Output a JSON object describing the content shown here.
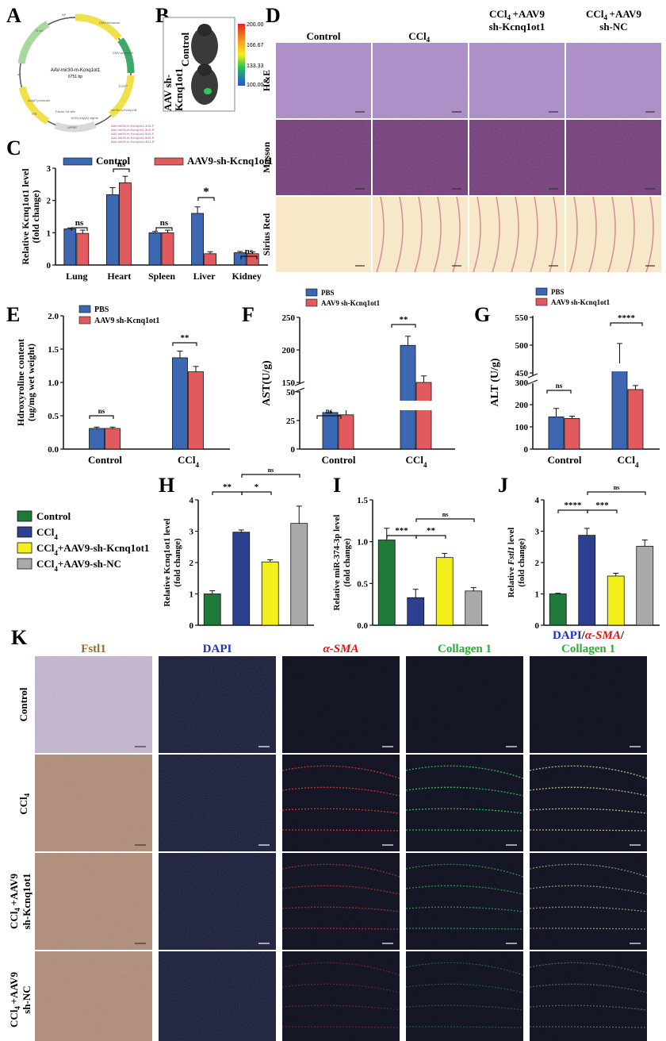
{
  "panels": {
    "A": {
      "letter": "A",
      "plasmid_name": "AAV-mir30-m-Kcnq1ot1",
      "plasmid_size": "6751 bp",
      "features": [
        "AP",
        "CMV enhancer",
        "CMV promoter",
        "EGFP",
        "mir30-m-Kcnq1ot1",
        "hGH poly(A) signal",
        "Factor Xa site",
        "WPRE",
        "ITR",
        "AmpR promoter",
        "ori",
        "f1 ori"
      ],
      "primers": [
        "AAV-mir30-m-Kcnq1ot1-3U5-F",
        "AAV-mir30-m-Kcnq1ot1-3U5-R",
        "AAV-mir30-m-Kcnq1ot1-5U5-F",
        "AAV-mir30-m-Kcnq1ot1-5U5-R",
        "AAV-mir30-m-Kcnq1ot1-3U3-R"
      ]
    },
    "B": {
      "letter": "B",
      "labels": [
        "Control",
        "AAV sh-\nKcnq1ot1"
      ],
      "colorbar_ticks": [
        "200.00",
        "166.67",
        "133.33",
        "100.00"
      ]
    },
    "C": {
      "letter": "C",
      "legend": [
        "Control",
        "AAV9-sh-Kcnq1ot1"
      ],
      "ylabel_line1": "Relative Kcnq1ot1 level",
      "ylabel_line2": "(fold change)",
      "significance": [
        "ns",
        "ns",
        "ns",
        "*",
        "ns"
      ]
    },
    "D": {
      "letter": "D",
      "columns": [
        "Control",
        "CCl4",
        "CCl4+AAV9\nsh-Kcnq1ot1",
        "CCl4+AAV9\nsh-NC"
      ],
      "rows": [
        "H&E",
        "Masson",
        "Sirius Red"
      ]
    },
    "E": {
      "letter": "E",
      "legend": [
        "PBS",
        "AAV9 sh-Kcnq1ot1"
      ],
      "ylabel_line1": "Hdroxyroline content",
      "ylabel_line2": "(ug/mg wet weight)",
      "significance": [
        "ns",
        "**"
      ]
    },
    "F": {
      "letter": "F",
      "legend": [
        "PBS",
        "AAV9 sh-Kcnq1ot1"
      ],
      "ylabel": "AST(U/g)",
      "significance": [
        "ns",
        "**"
      ]
    },
    "G": {
      "letter": "G",
      "legend": [
        "PBS",
        "AAV9 sh-Kcnq1ot1"
      ],
      "ylabel": "ALT (U/g)",
      "significance": [
        "ns",
        "****"
      ]
    },
    "H": {
      "letter": "H",
      "ylabel_line1": "Relative Kcnq1ot1 level",
      "ylabel_line2": "(fold change)",
      "significance": [
        "**",
        "*",
        "ns"
      ]
    },
    "I": {
      "letter": "I",
      "ylabel_line1": "Relative miR-374-3p level",
      "ylabel_line2": "(fold change)",
      "significance": [
        "***",
        "**",
        "ns"
      ]
    },
    "J": {
      "letter": "J",
      "ylabel_line1": "Relative Fstl1 level",
      "ylabel_line2": "(fold change)",
      "significance": [
        "****",
        "***",
        "ns"
      ]
    },
    "K": {
      "letter": "K",
      "columns": [
        "Fstl1",
        "DAPI",
        "α-SMA",
        "Collagen 1"
      ],
      "merge_label": [
        "DAPI",
        "/",
        "α-SMA",
        "/",
        "Collagen 1"
      ],
      "rows": [
        "Control",
        "CCl4",
        "CCl4+AAV9\nsh-Kcnq1ot1",
        "CCl4+AAV9\nsh-NC"
      ]
    },
    "group_legend": [
      "Control",
      "CCl4",
      "CCl4+AAV9-sh-Kcnq1ot1",
      "CCl4+AAV9-sh-NC"
    ]
  },
  "colors": {
    "blue": "#3b67b3",
    "red": "#e05a5e",
    "green": "#1f7a3a",
    "navy": "#2d3f8f",
    "yellow": "#f4ee1a",
    "gray": "#a9a9a9",
    "he": "#a486c0",
    "masson": "#6b3a6e",
    "sirius": "#f6e8c8",
    "ihc": "#b08a63",
    "fluor_bg": "#0b0c14",
    "fstl1_title": "#a0652e",
    "dapi_title": "#2030c0",
    "sma_title": "#e01010",
    "col_title": "#20b030"
  },
  "chart_data": [
    {
      "type": "bar",
      "panel": "C",
      "categories": [
        "Lung",
        "Heart",
        "Spleen",
        "Liver",
        "Kidney"
      ],
      "series": [
        {
          "name": "Control",
          "values": [
            1.12,
            2.18,
            1.0,
            1.6,
            0.38
          ],
          "errors": [
            0.03,
            0.22,
            0.04,
            0.2,
            0.04
          ]
        },
        {
          "name": "AAV9-sh-Kcnq1ot1",
          "values": [
            0.98,
            2.55,
            1.0,
            0.35,
            0.35
          ],
          "errors": [
            0.1,
            0.2,
            0.08,
            0.06,
            0.06
          ]
        }
      ],
      "ylim": [
        0,
        3
      ],
      "yticks": [
        0,
        1,
        2,
        3
      ],
      "ylabel": "Relative Kcnq1ot1 level (fold change)"
    },
    {
      "type": "bar",
      "panel": "E",
      "categories": [
        "Control",
        "CCl4"
      ],
      "series": [
        {
          "name": "PBS",
          "values": [
            0.31,
            1.37
          ],
          "errors": [
            0.02,
            0.1
          ]
        },
        {
          "name": "AAV9 sh-Kcnq1ot1",
          "values": [
            0.31,
            1.16
          ],
          "errors": [
            0.02,
            0.08
          ]
        }
      ],
      "ylim": [
        0,
        2.0
      ],
      "yticks": [
        "0.0",
        "0.5",
        "1.0",
        "1.5",
        "2.0"
      ],
      "ylabel": "Hdroxyroline content (ug/mg wet weight)"
    },
    {
      "type": "bar",
      "panel": "F",
      "categories": [
        "Control",
        "CCl4"
      ],
      "series": [
        {
          "name": "PBS",
          "values": [
            32,
            207
          ],
          "errors": [
            4,
            14
          ]
        },
        {
          "name": "AAV9 sh-Kcnq1ot1",
          "values": [
            30,
            150
          ],
          "errors": [
            8,
            10
          ]
        }
      ],
      "yticks": [
        "0",
        "25",
        "50",
        "150",
        "200",
        "250"
      ],
      "axis_break": [
        50,
        150
      ],
      "ylabel": "AST(U/g)"
    },
    {
      "type": "bar",
      "panel": "G",
      "categories": [
        "Control",
        "CCl4"
      ],
      "series": [
        {
          "name": "PBS",
          "values": [
            145,
            465
          ],
          "errors": [
            38,
            38
          ]
        },
        {
          "name": "AAV9 sh-Kcnq1ot1",
          "values": [
            138,
            268
          ],
          "errors": [
            10,
            18
          ]
        }
      ],
      "yticks": [
        "0",
        "100",
        "200",
        "300",
        "450",
        "500",
        "550"
      ],
      "axis_break": [
        300,
        450
      ],
      "ylabel": "ALT (U/g)"
    },
    {
      "type": "bar",
      "panel": "H",
      "categories": [
        "Control",
        "CCl4",
        "CCl4+AAV9-sh-Kcnq1ot1",
        "CCl4+AAV9-sh-NC"
      ],
      "values": [
        1.0,
        2.97,
        2.02,
        3.25
      ],
      "errors": [
        0.1,
        0.07,
        0.07,
        0.55
      ],
      "ylim": [
        0,
        4
      ],
      "yticks": [
        0,
        1,
        2,
        3,
        4
      ],
      "ylabel": "Relative Kcnq1ot1 level (fold change)"
    },
    {
      "type": "bar",
      "panel": "I",
      "categories": [
        "Control",
        "CCl4",
        "CCl4+AAV9-sh-Kcnq1ot1",
        "CCl4+AAV9-sh-NC"
      ],
      "values": [
        1.02,
        0.33,
        0.81,
        0.41
      ],
      "errors": [
        0.14,
        0.1,
        0.05,
        0.04
      ],
      "ylim": [
        0,
        1.5
      ],
      "yticks": [
        "0.0",
        "0.5",
        "1.0",
        "1.5"
      ],
      "ylabel": "Relative miR-374-3p level (fold change)"
    },
    {
      "type": "bar",
      "panel": "J",
      "categories": [
        "Control",
        "CCl4",
        "CCl4+AAV9-sh-Kcnq1ot1",
        "CCl4+AAV9-sh-NC"
      ],
      "values": [
        1.0,
        2.87,
        1.57,
        2.52
      ],
      "errors": [
        0.02,
        0.22,
        0.09,
        0.2
      ],
      "ylim": [
        0,
        4
      ],
      "yticks": [
        0,
        1,
        2,
        3,
        4
      ],
      "ylabel": "Relative Fstl1 level (fold change)"
    }
  ]
}
